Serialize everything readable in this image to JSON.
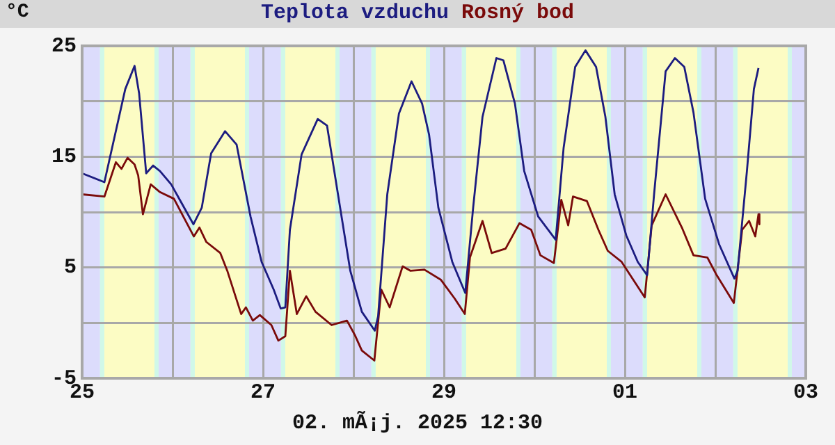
{
  "chart_data": {
    "type": "line",
    "ylabel": "°C",
    "legend": "top",
    "grid": true,
    "annotations": [
      "02. mÃ¡j. 2025 12:30"
    ],
    "xlim": [
      "2025-04-25T00:00",
      "2025-05-03T00:00"
    ],
    "xticks": [
      {
        "value": "2025-04-25T00:00",
        "label": "25"
      },
      {
        "value": "2025-04-26T00:00",
        "label": null
      },
      {
        "value": "2025-04-27T00:00",
        "label": "27"
      },
      {
        "value": "2025-04-28T00:00",
        "label": null
      },
      {
        "value": "2025-04-29T00:00",
        "label": "29"
      },
      {
        "value": "2025-04-30T00:00",
        "label": null
      },
      {
        "value": "2025-05-01T00:00",
        "label": "01"
      },
      {
        "value": "2025-05-02T00:00",
        "label": null
      },
      {
        "value": "2025-05-03T00:00",
        "label": "03"
      }
    ],
    "ylim": [
      -5,
      25
    ],
    "yticks": [
      -5,
      {
        "value": 0,
        "label": null
      },
      5,
      {
        "value": 10,
        "label": null
      },
      15,
      {
        "value": 20,
        "label": null
      },
      25
    ],
    "series": [
      {
        "name": "Teplota vzduchu",
        "color": "#1c1c80",
        "x": [
          "2025-04-25T00:00",
          "2025-04-25T05:55",
          "2025-04-25T11:27",
          "2025-04-25T13:55",
          "2025-04-25T15:08",
          "2025-04-25T17:00",
          "2025-04-25T18:50",
          "2025-04-25T20:40",
          "2025-04-25T23:38",
          "2025-04-26T05:32",
          "2025-04-26T07:45",
          "2025-04-26T10:14",
          "2025-04-26T13:55",
          "2025-04-26T16:59",
          "2025-04-26T20:41",
          "2025-04-26T23:38",
          "2025-04-27T02:50",
          "2025-04-27T04:41",
          "2025-04-27T05:55",
          "2025-04-27T07:08",
          "2025-04-27T10:14",
          "2025-04-27T14:31",
          "2025-04-27T16:59",
          "2025-04-27T19:28",
          "2025-04-27T23:09",
          "2025-04-28T02:13",
          "2025-04-28T05:39",
          "2025-04-28T06:32",
          "2025-04-28T08:58",
          "2025-04-28T12:04",
          "2025-04-28T15:24",
          "2025-04-28T18:12",
          "2025-04-28T20:03",
          "2025-04-28T22:31",
          "2025-04-29T02:13",
          "2025-04-29T05:39",
          "2025-04-29T07:45",
          "2025-04-29T10:14",
          "2025-04-29T13:55",
          "2025-04-29T15:46",
          "2025-04-29T18:50",
          "2025-04-29T21:18",
          "2025-04-30T01:00",
          "2025-04-30T05:39",
          "2025-04-30T07:45",
          "2025-04-30T10:49",
          "2025-04-30T13:33",
          "2025-04-30T16:22",
          "2025-04-30T18:50",
          "2025-04-30T21:18",
          "2025-05-01T00:22",
          "2025-05-01T03:26",
          "2025-05-01T05:55",
          "2025-05-01T07:45",
          "2025-05-01T10:49",
          "2025-05-01T13:17",
          "2025-05-01T15:46",
          "2025-05-01T18:12",
          "2025-05-01T21:18",
          "2025-05-02T01:00",
          "2025-05-02T05:04",
          "2025-05-02T05:55",
          "2025-05-02T08:23",
          "2025-05-02T10:14",
          "2025-05-02T11:27"
        ],
        "values": [
          13.5,
          12.7,
          21.1,
          23.2,
          20.7,
          13.5,
          14.2,
          13.7,
          12.5,
          8.9,
          10.4,
          15.3,
          17.3,
          16.1,
          9.6,
          5.5,
          3.0,
          1.3,
          1.4,
          8.4,
          15.2,
          18.4,
          17.8,
          12.5,
          4.7,
          1.0,
          -0.7,
          0.6,
          11.6,
          18.9,
          21.8,
          19.8,
          17.0,
          10.4,
          5.5,
          2.7,
          10.4,
          18.6,
          23.9,
          23.7,
          19.8,
          13.7,
          9.6,
          7.5,
          15.8,
          23.1,
          24.6,
          23.1,
          18.6,
          11.6,
          7.9,
          5.5,
          4.3,
          11.6,
          22.7,
          23.9,
          23.1,
          19.0,
          11.2,
          7.1,
          4.0,
          4.7,
          13.7,
          21.1,
          23.0
        ]
      },
      {
        "name": "Rosný bod",
        "color": "#7a0a0a",
        "x": [
          "2025-04-25T00:00",
          "2025-04-25T05:55",
          "2025-04-25T08:58",
          "2025-04-25T10:27",
          "2025-04-25T12:04",
          "2025-04-25T13:55",
          "2025-04-25T14:53",
          "2025-04-25T16:08",
          "2025-04-25T18:12",
          "2025-04-25T20:40",
          "2025-04-26T00:22",
          "2025-04-26T05:39",
          "2025-04-26T07:08",
          "2025-04-26T08:58",
          "2025-04-26T12:40",
          "2025-04-26T14:31",
          "2025-04-26T18:12",
          "2025-04-26T19:28",
          "2025-04-26T21:18",
          "2025-04-26T23:09",
          "2025-04-27T02:13",
          "2025-04-27T04:04",
          "2025-04-27T05:55",
          "2025-04-27T07:08",
          "2025-04-27T08:58",
          "2025-04-27T11:27",
          "2025-04-27T13:55",
          "2025-04-27T18:12",
          "2025-04-27T22:16",
          "2025-04-28T00:22",
          "2025-04-28T02:13",
          "2025-04-28T05:32",
          "2025-04-28T07:23",
          "2025-04-28T09:36",
          "2025-04-28T13:02",
          "2025-04-28T15:08",
          "2025-04-28T18:50",
          "2025-04-28T23:09",
          "2025-04-29T02:50",
          "2025-04-29T05:32",
          "2025-04-29T06:54",
          "2025-04-29T10:14",
          "2025-04-29T12:40",
          "2025-04-29T16:21",
          "2025-04-29T20:03",
          "2025-04-29T23:09",
          "2025-04-30T01:35",
          "2025-04-30T05:10",
          "2025-04-30T07:08",
          "2025-04-30T08:58",
          "2025-04-30T10:14",
          "2025-04-30T13:55",
          "2025-04-30T16:59",
          "2025-04-30T19:28",
          "2025-04-30T23:09",
          "2025-05-01T02:13",
          "2025-05-01T05:17",
          "2025-05-01T07:07",
          "2025-05-01T10:49",
          "2025-05-01T15:08",
          "2025-05-01T18:12",
          "2025-05-01T21:54",
          "2025-05-02T00:22",
          "2025-05-02T04:55",
          "2025-05-02T07:07",
          "2025-05-02T08:58",
          "2025-05-02T10:36",
          "2025-05-02T11:27",
          "2025-05-02T11:42"
        ],
        "values": [
          11.6,
          11.4,
          14.5,
          13.9,
          14.9,
          14.3,
          13.3,
          9.8,
          12.5,
          11.8,
          11.2,
          7.8,
          8.6,
          7.3,
          6.3,
          4.7,
          0.8,
          1.4,
          0.2,
          0.7,
          -0.2,
          -1.6,
          -1.2,
          4.7,
          0.8,
          2.4,
          1.0,
          -0.2,
          0.2,
          -1.1,
          -2.5,
          -3.4,
          3.0,
          1.4,
          5.1,
          4.7,
          4.8,
          3.9,
          2.2,
          0.8,
          5.9,
          9.2,
          6.3,
          6.7,
          9.0,
          8.4,
          6.1,
          5.4,
          11.1,
          8.8,
          11.4,
          11.0,
          8.4,
          6.5,
          5.5,
          3.9,
          2.3,
          8.8,
          11.6,
          8.6,
          6.1,
          5.9,
          4.3,
          1.8,
          8.4,
          9.2,
          7.8,
          9.8,
          8.9
        ]
      }
    ],
    "bands": [
      {
        "axis": "x",
        "from": "2025-04-25T00:00",
        "to": "2025-04-25T04:45",
        "color": "#dcdcfc"
      },
      {
        "axis": "x",
        "from": "2025-04-25T04:45",
        "to": "2025-04-25T05:54",
        "color": "#d0f8e8"
      },
      {
        "axis": "x",
        "from": "2025-04-25T05:54",
        "to": "2025-04-25T19:12",
        "color": "#fcfcc4"
      },
      {
        "axis": "x",
        "from": "2025-04-25T19:12",
        "to": "2025-04-25T20:18",
        "color": "#d0f8e8"
      },
      {
        "axis": "x",
        "from": "2025-04-25T20:18",
        "to": "2025-04-26T04:45",
        "color": "#dcdcfc"
      },
      {
        "axis": "x",
        "from": "2025-04-26T04:45",
        "to": "2025-04-26T05:54",
        "color": "#d0f8e8"
      },
      {
        "axis": "x",
        "from": "2025-04-26T05:54",
        "to": "2025-04-26T19:12",
        "color": "#fcfcc4"
      },
      {
        "axis": "x",
        "from": "2025-04-26T19:12",
        "to": "2025-04-26T20:18",
        "color": "#d0f8e8"
      },
      {
        "axis": "x",
        "from": "2025-04-26T20:18",
        "to": "2025-04-27T04:45",
        "color": "#dcdcfc"
      },
      {
        "axis": "x",
        "from": "2025-04-27T04:45",
        "to": "2025-04-27T05:54",
        "color": "#d0f8e8"
      },
      {
        "axis": "x",
        "from": "2025-04-27T05:54",
        "to": "2025-04-27T19:12",
        "color": "#fcfcc4"
      },
      {
        "axis": "x",
        "from": "2025-04-27T19:12",
        "to": "2025-04-27T20:18",
        "color": "#d0f8e8"
      },
      {
        "axis": "x",
        "from": "2025-04-27T20:18",
        "to": "2025-04-28T04:45",
        "color": "#dcdcfc"
      },
      {
        "axis": "x",
        "from": "2025-04-28T04:45",
        "to": "2025-04-28T05:54",
        "color": "#d0f8e8"
      },
      {
        "axis": "x",
        "from": "2025-04-28T05:54",
        "to": "2025-04-28T19:12",
        "color": "#fcfcc4"
      },
      {
        "axis": "x",
        "from": "2025-04-28T19:12",
        "to": "2025-04-28T20:18",
        "color": "#d0f8e8"
      },
      {
        "axis": "x",
        "from": "2025-04-28T20:18",
        "to": "2025-04-29T04:45",
        "color": "#dcdcfc"
      },
      {
        "axis": "x",
        "from": "2025-04-29T04:45",
        "to": "2025-04-29T05:54",
        "color": "#d0f8e8"
      },
      {
        "axis": "x",
        "from": "2025-04-29T05:54",
        "to": "2025-04-29T19:12",
        "color": "#fcfcc4"
      },
      {
        "axis": "x",
        "from": "2025-04-29T19:12",
        "to": "2025-04-29T20:18",
        "color": "#d0f8e8"
      },
      {
        "axis": "x",
        "from": "2025-04-29T20:18",
        "to": "2025-04-30T04:45",
        "color": "#dcdcfc"
      },
      {
        "axis": "x",
        "from": "2025-04-30T04:45",
        "to": "2025-04-30T05:54",
        "color": "#d0f8e8"
      },
      {
        "axis": "x",
        "from": "2025-04-30T05:54",
        "to": "2025-04-30T19:12",
        "color": "#fcfcc4"
      },
      {
        "axis": "x",
        "from": "2025-04-30T19:12",
        "to": "2025-04-30T20:18",
        "color": "#d0f8e8"
      },
      {
        "axis": "x",
        "from": "2025-04-30T20:18",
        "to": "2025-05-01T04:45",
        "color": "#dcdcfc"
      },
      {
        "axis": "x",
        "from": "2025-05-01T04:45",
        "to": "2025-05-01T05:54",
        "color": "#d0f8e8"
      },
      {
        "axis": "x",
        "from": "2025-05-01T05:54",
        "to": "2025-05-01T19:12",
        "color": "#fcfcc4"
      },
      {
        "axis": "x",
        "from": "2025-05-01T19:12",
        "to": "2025-05-01T20:18",
        "color": "#d0f8e8"
      },
      {
        "axis": "x",
        "from": "2025-05-01T20:18",
        "to": "2025-05-02T04:45",
        "color": "#dcdcfc"
      },
      {
        "axis": "x",
        "from": "2025-05-02T04:45",
        "to": "2025-05-02T05:54",
        "color": "#d0f8e8"
      },
      {
        "axis": "x",
        "from": "2025-05-02T05:54",
        "to": "2025-05-02T19:12",
        "color": "#fcfcc4"
      },
      {
        "axis": "x",
        "from": "2025-05-02T19:12",
        "to": "2025-05-02T20:18",
        "color": "#d0f8e8"
      },
      {
        "axis": "x",
        "from": "2025-05-02T20:18",
        "to": "2025-05-03T00:00",
        "color": "#dcdcfc"
      }
    ]
  }
}
